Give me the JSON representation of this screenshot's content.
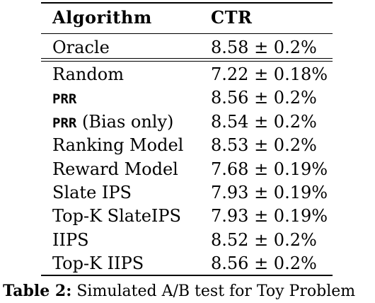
{
  "table": {
    "header": {
      "col1": "Algorithm",
      "col2": "CTR"
    },
    "oracle": {
      "name": "Oracle",
      "ctr": "8.58 ± 0.2%"
    },
    "rows": [
      {
        "name": "Random",
        "ctr": "7.22 ± 0.18%"
      },
      {
        "name_code": "PRR",
        "name_suffix": "",
        "ctr": "8.56 ± 0.2%"
      },
      {
        "name_code": "PRR",
        "name_suffix": " (Bias only)",
        "ctr": "8.54 ± 0.2%"
      },
      {
        "name": "Ranking Model",
        "ctr": "8.53 ± 0.2%"
      },
      {
        "name": "Reward Model",
        "ctr": "7.68 ± 0.19%"
      },
      {
        "name": "Slate IPS",
        "ctr": "7.93 ± 0.19%"
      },
      {
        "name": "Top-K SlateIPS",
        "ctr": "7.93 ± 0.19%"
      },
      {
        "name": "IIPS",
        "ctr": "8.52 ± 0.2%"
      },
      {
        "name": "Top-K IIPS",
        "ctr": "8.56 ± 0.2%"
      }
    ]
  },
  "caption": {
    "label": "Table 2:",
    "text": " Simulated A/B test for Toy Problem"
  }
}
